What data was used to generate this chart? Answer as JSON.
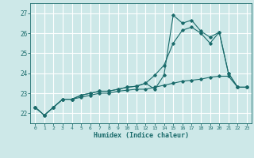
{
  "xlabel": "Humidex (Indice chaleur)",
  "bg_color": "#cde8e8",
  "grid_color": "#ffffff",
  "line_color": "#1a6b6b",
  "xlim": [
    -0.5,
    23.5
  ],
  "ylim": [
    21.5,
    27.5
  ],
  "yticks": [
    22,
    23,
    24,
    25,
    26,
    27
  ],
  "xticks": [
    0,
    1,
    2,
    3,
    4,
    5,
    6,
    7,
    8,
    9,
    10,
    11,
    12,
    13,
    14,
    15,
    16,
    17,
    18,
    19,
    20,
    21,
    22,
    23
  ],
  "line1_x": [
    0,
    1,
    2,
    3,
    4,
    5,
    6,
    7,
    8,
    9,
    10,
    11,
    12,
    13,
    14,
    15,
    16,
    17,
    18,
    19,
    20,
    21,
    22,
    23
  ],
  "line1_y": [
    22.3,
    21.9,
    22.3,
    22.7,
    22.7,
    22.8,
    22.9,
    23.0,
    23.0,
    23.1,
    23.15,
    23.2,
    23.2,
    23.3,
    23.4,
    23.5,
    23.6,
    23.65,
    23.7,
    23.8,
    23.85,
    23.85,
    23.3,
    23.3
  ],
  "line2_x": [
    0,
    1,
    2,
    3,
    4,
    5,
    6,
    7,
    8,
    9,
    10,
    11,
    12,
    13,
    14,
    15,
    16,
    17,
    18,
    19,
    20,
    21,
    22,
    23
  ],
  "line2_y": [
    22.3,
    21.9,
    22.3,
    22.7,
    22.7,
    22.9,
    23.0,
    23.1,
    23.1,
    23.2,
    23.3,
    23.35,
    23.5,
    23.9,
    24.4,
    25.5,
    26.15,
    26.3,
    26.0,
    25.5,
    26.05,
    24.0,
    23.3,
    23.3
  ],
  "line3_x": [
    0,
    1,
    2,
    3,
    4,
    5,
    6,
    7,
    8,
    9,
    10,
    11,
    12,
    13,
    14,
    15,
    16,
    17,
    18,
    19,
    20,
    21,
    22,
    23
  ],
  "line3_y": [
    22.3,
    21.9,
    22.3,
    22.7,
    22.7,
    22.9,
    23.0,
    23.1,
    23.1,
    23.2,
    23.3,
    23.35,
    23.5,
    23.2,
    23.9,
    26.9,
    26.5,
    26.65,
    26.1,
    25.8,
    26.05,
    24.0,
    23.3,
    23.3
  ]
}
